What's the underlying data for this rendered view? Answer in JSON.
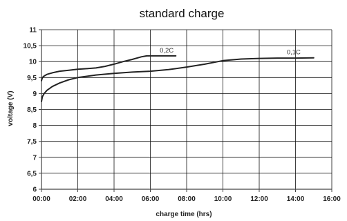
{
  "chart_data": {
    "type": "line",
    "title": "standard charge",
    "xlabel": "charge time (hrs)",
    "ylabel": "voltage (V)",
    "x_ticks": [
      "00:00",
      "02:00",
      "04:00",
      "06:00",
      "08:00",
      "10:00",
      "12:00",
      "14:00",
      "16:00"
    ],
    "y_ticks": [
      "6",
      "6,5",
      "7",
      "7,5",
      "8",
      "8,5",
      "9",
      "9,5",
      "10",
      "10,5",
      "11"
    ],
    "xlim": [
      0,
      16
    ],
    "ylim": [
      6,
      11
    ],
    "grid": true,
    "colors": {
      "line": "#222222",
      "grid": "#111111",
      "axis": "#444444"
    },
    "series": [
      {
        "name": "0,2C",
        "x_hours": [
          0,
          0.05,
          0.15,
          0.3,
          0.6,
          1,
          1.5,
          2,
          2.5,
          3,
          3.5,
          4,
          4.5,
          5,
          5.5,
          5.8,
          6,
          6.5,
          7,
          7.4
        ],
        "y": [
          9.4,
          9.5,
          9.55,
          9.6,
          9.65,
          9.7,
          9.73,
          9.76,
          9.78,
          9.8,
          9.85,
          9.92,
          10.0,
          10.07,
          10.15,
          10.18,
          10.18,
          10.18,
          10.18,
          10.18
        ]
      },
      {
        "name": "0,1C",
        "x_hours": [
          0,
          0.05,
          0.15,
          0.3,
          0.6,
          1,
          1.5,
          2,
          3,
          4,
          5,
          6,
          7,
          8,
          9,
          10,
          11,
          12,
          13,
          14,
          15
        ],
        "y": [
          8.75,
          8.9,
          9.0,
          9.1,
          9.22,
          9.33,
          9.43,
          9.5,
          9.58,
          9.63,
          9.67,
          9.7,
          9.75,
          9.83,
          9.92,
          10.03,
          10.08,
          10.1,
          10.11,
          10.11,
          10.12
        ]
      }
    ]
  }
}
